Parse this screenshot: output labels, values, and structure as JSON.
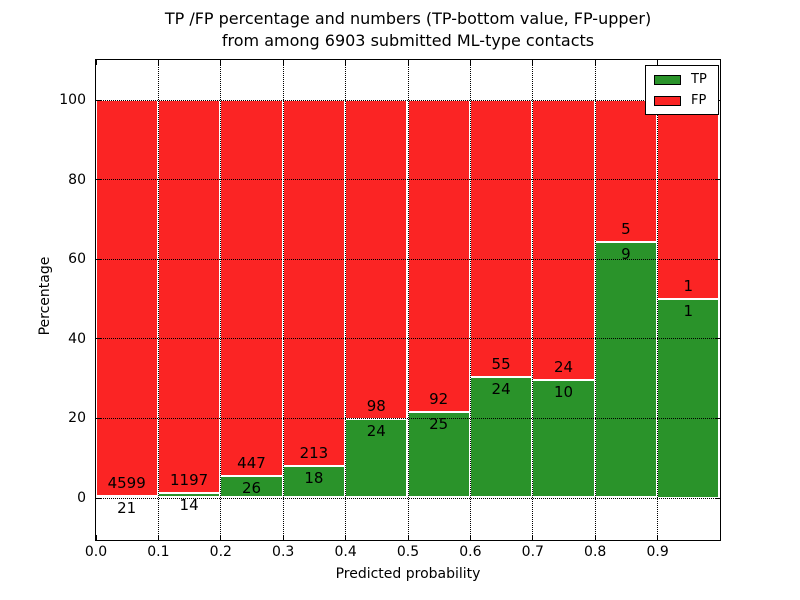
{
  "figure": {
    "title_line1": "TP /FP percentage and numbers (TP-bottom value, FP-upper)",
    "title_line2": "from among 6903 submitted ML-type contacts",
    "xlabel": "Predicted probability",
    "ylabel": "Percentage"
  },
  "legend": {
    "items": [
      {
        "label": "TP",
        "color": "#2a932a"
      },
      {
        "label": "FP",
        "color": "#fb2424"
      }
    ]
  },
  "chart_data": {
    "type": "bar",
    "stacked": true,
    "normalized_to_percent_per_bin": true,
    "title": "TP /FP percentage and numbers (TP-bottom value, FP-upper)\nfrom among 6903 submitted ML-type contacts",
    "xlabel": "Predicted probability",
    "ylabel": "Percentage",
    "total_submitted": 6903,
    "x_bins": [
      [
        0.0,
        0.1
      ],
      [
        0.1,
        0.2
      ],
      [
        0.2,
        0.3
      ],
      [
        0.3,
        0.4
      ],
      [
        0.4,
        0.5
      ],
      [
        0.5,
        0.6
      ],
      [
        0.6,
        0.7
      ],
      [
        0.7,
        0.8
      ],
      [
        0.8,
        0.9
      ],
      [
        0.9,
        1.0
      ]
    ],
    "x_tick_labels": [
      "0.0",
      "0.1",
      "0.2",
      "0.3",
      "0.4",
      "0.5",
      "0.6",
      "0.7",
      "0.8",
      "0.9"
    ],
    "y_ticks": [
      0,
      20,
      40,
      60,
      80,
      100
    ],
    "xlim": [
      0.0,
      1.0
    ],
    "ylim": [
      -10.5,
      110.2
    ],
    "grid": "dotted-black-above-bars",
    "legend_position": "upper-right",
    "series": [
      {
        "name": "TP",
        "color": "#2a932a",
        "counts": [
          21,
          14,
          26,
          18,
          24,
          25,
          24,
          10,
          9,
          1
        ]
      },
      {
        "name": "FP",
        "color": "#fb2424",
        "counts": [
          4599,
          1197,
          447,
          213,
          98,
          92,
          55,
          24,
          5,
          1
        ]
      }
    ],
    "tp_percent_by_bin": [
      0.45,
      1.16,
      5.5,
      7.79,
      19.67,
      21.37,
      30.38,
      29.41,
      64.29,
      50.0
    ],
    "fp_percent_by_bin": [
      99.55,
      98.84,
      94.5,
      92.21,
      80.33,
      78.63,
      69.62,
      70.59,
      35.71,
      50.0
    ]
  }
}
